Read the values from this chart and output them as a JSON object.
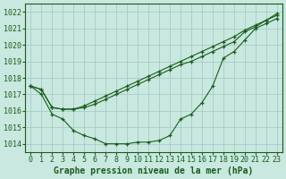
{
  "title": "Graphe pression niveau de la mer (hPa)",
  "bg_color": "#c8e8e0",
  "grid_color": "#a0c8c0",
  "line_color": "#1a5c1a",
  "x_values": [
    0,
    1,
    2,
    3,
    4,
    5,
    6,
    7,
    8,
    9,
    10,
    11,
    12,
    13,
    14,
    15,
    16,
    17,
    18,
    19,
    20,
    21,
    22,
    23
  ],
  "line1": [
    1017.5,
    1017.0,
    1015.8,
    1015.5,
    1014.8,
    1014.5,
    1014.3,
    1014.0,
    1014.0,
    1014.0,
    1014.1,
    1014.1,
    1014.2,
    1014.5,
    1015.5,
    1015.8,
    1016.5,
    1017.5,
    1019.2,
    1019.6,
    1020.3,
    1021.0,
    1021.3,
    1021.6
  ],
  "line2": [
    1017.5,
    1017.3,
    1016.2,
    1016.1,
    1016.1,
    1016.2,
    1016.4,
    1016.7,
    1017.0,
    1017.3,
    1017.6,
    1017.9,
    1018.2,
    1018.5,
    1018.8,
    1019.0,
    1019.3,
    1019.6,
    1019.9,
    1020.2,
    1020.8,
    1021.1,
    1021.5,
    1021.8
  ],
  "line3": [
    1017.5,
    1017.3,
    1016.2,
    1016.1,
    1016.1,
    1016.3,
    1016.6,
    1016.9,
    1017.2,
    1017.5,
    1017.8,
    1018.1,
    1018.4,
    1018.7,
    1019.0,
    1019.3,
    1019.6,
    1019.9,
    1020.2,
    1020.5,
    1020.9,
    1021.2,
    1021.5,
    1021.9
  ],
  "ylim": [
    1013.5,
    1022.5
  ],
  "yticks": [
    1014,
    1015,
    1016,
    1017,
    1018,
    1019,
    1020,
    1021,
    1022
  ],
  "title_fontsize": 7,
  "tick_fontsize": 6
}
